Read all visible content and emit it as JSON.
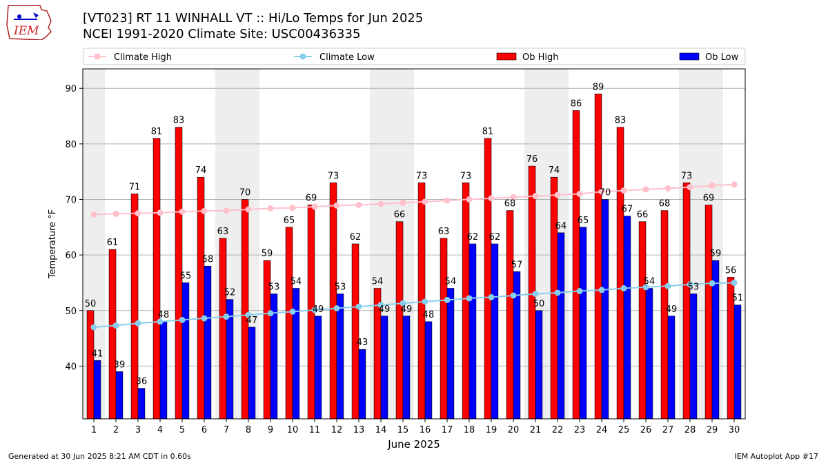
{
  "header": {
    "title": "[VT023] RT 11 WINHALL  VT :: Hi/Lo Temps for Jun 2025",
    "subtitle": "NCEI 1991-2020 Climate Site: USC00436335",
    "logo_text": "IEM"
  },
  "footer": {
    "left": "Generated at 30 Jun 2025 8:21 AM CDT in 0.60s",
    "right": "IEM Autoplot App #17"
  },
  "chart_data": {
    "type": "bar",
    "title": "[VT023] RT 11 WINHALL  VT :: Hi/Lo Temps for Jun 2025",
    "subtitle": "NCEI 1991-2020 Climate Site: USC00436335",
    "xlabel": "June 2025",
    "ylabel": "Temperature °F",
    "ylim": [
      30.5,
      93.5
    ],
    "yticks": [
      40,
      50,
      60,
      70,
      80,
      90
    ],
    "grid": "horizontal",
    "legend_position": "top",
    "categories": [
      "1",
      "2",
      "3",
      "4",
      "5",
      "6",
      "7",
      "8",
      "9",
      "10",
      "11",
      "12",
      "13",
      "14",
      "15",
      "16",
      "17",
      "18",
      "19",
      "20",
      "21",
      "22",
      "23",
      "24",
      "25",
      "26",
      "27",
      "28",
      "29",
      "30"
    ],
    "weekend_bands": [
      [
        1,
        1
      ],
      [
        7,
        8
      ],
      [
        14,
        15
      ],
      [
        21,
        22
      ],
      [
        28,
        29
      ]
    ],
    "series": [
      {
        "name": "Ob High",
        "kind": "bar",
        "color": "#ff0000",
        "values": [
          50,
          61,
          71,
          81,
          83,
          74,
          63,
          70,
          59,
          65,
          69,
          73,
          62,
          54,
          66,
          73,
          63,
          73,
          81,
          68,
          76,
          74,
          86,
          89,
          83,
          66,
          68,
          73,
          69,
          56
        ]
      },
      {
        "name": "Ob Low",
        "kind": "bar",
        "color": "#0000ff",
        "values": [
          41,
          39,
          36,
          48,
          55,
          58,
          52,
          47,
          53,
          54,
          49,
          53,
          43,
          49,
          49,
          48,
          54,
          62,
          62,
          57,
          50,
          64,
          65,
          70,
          67,
          54,
          49,
          53,
          59,
          51
        ]
      },
      {
        "name": "Climate High",
        "kind": "line",
        "color": "#ffc0cb",
        "values": [
          67.3,
          67.4,
          67.5,
          67.6,
          67.8,
          67.9,
          68.0,
          68.2,
          68.4,
          68.5,
          68.7,
          68.9,
          69.0,
          69.2,
          69.4,
          69.6,
          69.8,
          70.0,
          70.2,
          70.4,
          70.6,
          70.8,
          71.0,
          71.4,
          71.6,
          71.8,
          72.0,
          72.2,
          72.5,
          72.7
        ]
      },
      {
        "name": "Climate Low",
        "kind": "line",
        "color": "#87ceeb",
        "values": [
          47.0,
          47.3,
          47.7,
          48.0,
          48.3,
          48.6,
          48.9,
          49.2,
          49.5,
          49.8,
          50.1,
          50.4,
          50.7,
          51.0,
          51.3,
          51.6,
          51.9,
          52.2,
          52.4,
          52.7,
          53.0,
          53.2,
          53.5,
          53.7,
          54.0,
          54.2,
          54.4,
          54.7,
          54.9,
          55.0
        ]
      }
    ]
  }
}
